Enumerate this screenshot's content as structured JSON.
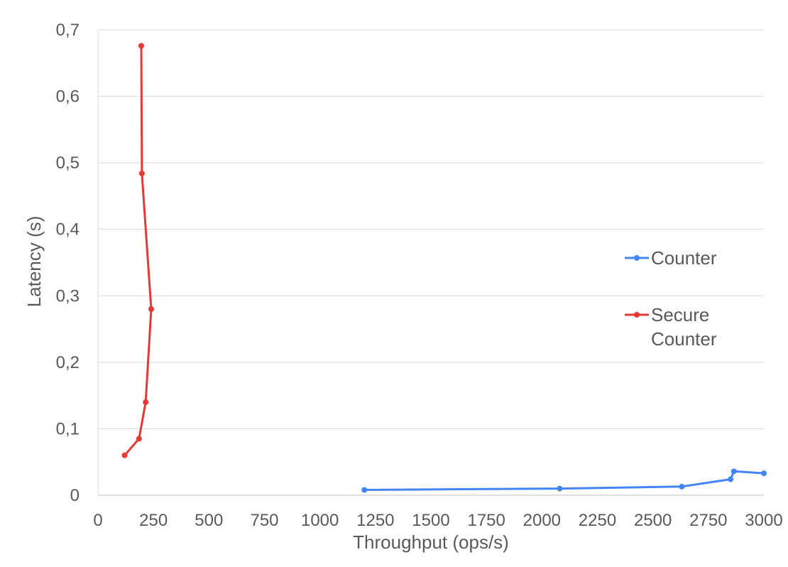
{
  "chart_data": {
    "type": "line",
    "title": "",
    "xlabel": "Throughput (ops/s)",
    "ylabel": "Latency (s)",
    "xlim": [
      0,
      3000
    ],
    "ylim": [
      0,
      0.7
    ],
    "x_ticks": [
      0,
      250,
      500,
      750,
      1000,
      1250,
      1500,
      1750,
      2000,
      2250,
      2500,
      2750,
      3000
    ],
    "x_tick_labels": [
      "0",
      "250",
      "500",
      "750",
      "1000",
      "1250",
      "1500",
      "1750",
      "2000",
      "2250",
      "2500",
      "2750",
      "3000"
    ],
    "y_ticks": [
      0,
      0.1,
      0.2,
      0.3,
      0.4,
      0.5,
      0.6,
      0.7
    ],
    "y_tick_labels": [
      "0",
      "0,1",
      "0,2",
      "0,3",
      "0,4",
      "0,5",
      "0,6",
      "0,7"
    ],
    "grid": {
      "horizontal": true,
      "vertical": false
    },
    "legend_position": "right",
    "series": [
      {
        "name": "Counter",
        "legend_lines": [
          "Counter"
        ],
        "color": "#4285f4",
        "points": [
          {
            "x": 1200,
            "y": 0.008
          },
          {
            "x": 2080,
            "y": 0.01
          },
          {
            "x": 2630,
            "y": 0.013
          },
          {
            "x": 2850,
            "y": 0.024
          },
          {
            "x": 2865,
            "y": 0.036
          },
          {
            "x": 3000,
            "y": 0.033
          }
        ]
      },
      {
        "name": "Secure Counter",
        "legend_lines": [
          "Secure",
          "Counter"
        ],
        "color": "#e53935",
        "points": [
          {
            "x": 120,
            "y": 0.06
          },
          {
            "x": 185,
            "y": 0.085
          },
          {
            "x": 215,
            "y": 0.14
          },
          {
            "x": 240,
            "y": 0.28
          },
          {
            "x": 198,
            "y": 0.484
          },
          {
            "x": 195,
            "y": 0.676
          }
        ]
      }
    ]
  }
}
